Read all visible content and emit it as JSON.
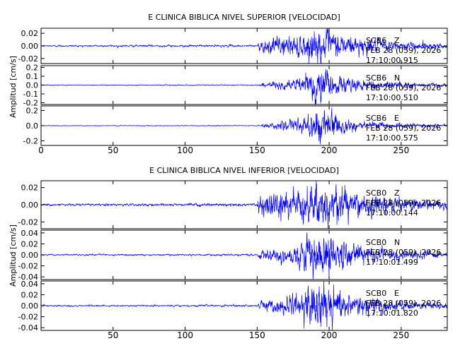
{
  "colors": {
    "trace": "#0000ee",
    "axes": "#000000",
    "background": "#ffffff"
  },
  "chart_data": [
    {
      "type": "line",
      "title": "E CLINICA BIBLICA NIVEL SUPERIOR [VELOCIDAD]",
      "ylabel": "Amplitud [cm/s]",
      "xlim": [
        0,
        282
      ],
      "x_ticks": [
        0,
        50,
        100,
        150,
        200,
        250
      ],
      "x_tick_labels": [
        "0",
        "50",
        "100",
        "150",
        "200",
        "250"
      ],
      "panels": [
        {
          "station": "SCB6",
          "component": "Z",
          "date": "FEB 28 (059), 2026",
          "time": "17:10:00.915",
          "ylim": [
            -0.028,
            0.028
          ],
          "y_ticks": [
            -0.02,
            0.0,
            0.02
          ],
          "y_tick_labels": [
            "-0.02",
            "0.00",
            "0.02"
          ],
          "envelope": [
            {
              "t": 0,
              "a": 0.0012
            },
            {
              "t": 150,
              "a": 0.0015
            },
            {
              "t": 152,
              "a": 0.008
            },
            {
              "t": 165,
              "a": 0.011
            },
            {
              "t": 182,
              "a": 0.016
            },
            {
              "t": 192,
              "a": 0.022
            },
            {
              "t": 200,
              "a": 0.019
            },
            {
              "t": 215,
              "a": 0.014
            },
            {
              "t": 240,
              "a": 0.007
            },
            {
              "t": 282,
              "a": 0.0035
            }
          ]
        },
        {
          "station": "SCB6",
          "component": "N",
          "date": "FEB 28 (059), 2026",
          "time": "17:10:00.510",
          "ylim": [
            -0.22,
            0.22
          ],
          "y_ticks": [
            -0.2,
            -0.1,
            0.0,
            0.1,
            0.2
          ],
          "y_tick_labels": [
            "-0.2",
            "-0.1",
            "0.0",
            "0.1",
            "0.2"
          ],
          "envelope": [
            {
              "t": 0,
              "a": 0.004
            },
            {
              "t": 150,
              "a": 0.005
            },
            {
              "t": 155,
              "a": 0.02
            },
            {
              "t": 175,
              "a": 0.05
            },
            {
              "t": 185,
              "a": 0.11
            },
            {
              "t": 190,
              "a": 0.19
            },
            {
              "t": 196,
              "a": 0.16
            },
            {
              "t": 205,
              "a": 0.09
            },
            {
              "t": 225,
              "a": 0.045
            },
            {
              "t": 282,
              "a": 0.015
            }
          ]
        },
        {
          "station": "SCB6",
          "component": "E",
          "date": "FEB 28 (059), 2026",
          "time": "17:10:00.575",
          "ylim": [
            -0.26,
            0.26
          ],
          "y_ticks": [
            -0.2,
            0.0,
            0.2
          ],
          "y_tick_labels": [
            "-0.2",
            "0.0",
            "0.2"
          ],
          "envelope": [
            {
              "t": 0,
              "a": 0.004
            },
            {
              "t": 150,
              "a": 0.005
            },
            {
              "t": 155,
              "a": 0.02
            },
            {
              "t": 175,
              "a": 0.06
            },
            {
              "t": 185,
              "a": 0.12
            },
            {
              "t": 192,
              "a": 0.22
            },
            {
              "t": 198,
              "a": 0.17
            },
            {
              "t": 210,
              "a": 0.08
            },
            {
              "t": 230,
              "a": 0.04
            },
            {
              "t": 282,
              "a": 0.012
            }
          ]
        }
      ]
    },
    {
      "type": "line",
      "title": "E CLINICA BIBLICA NIVEL INFERIOR [VELOCIDAD]",
      "ylabel": "Amplitud [cm/s]",
      "xlim": [
        0,
        282
      ],
      "x_ticks": [
        0,
        50,
        100,
        150,
        200,
        250
      ],
      "x_tick_labels": [
        "",
        "50",
        "100",
        "150",
        "200",
        "250"
      ],
      "panels": [
        {
          "station": "SCB0",
          "component": "Z",
          "date": "FEB 28 (059), 2026",
          "time": "17:10:00.144",
          "ylim": [
            -0.028,
            0.028
          ],
          "y_ticks": [
            -0.02,
            0.0,
            0.02
          ],
          "y_tick_labels": [
            "-0.02",
            "0.00",
            "0.02"
          ],
          "envelope": [
            {
              "t": 0,
              "a": 0.001
            },
            {
              "t": 150,
              "a": 0.0014
            },
            {
              "t": 152,
              "a": 0.01
            },
            {
              "t": 165,
              "a": 0.013
            },
            {
              "t": 182,
              "a": 0.017
            },
            {
              "t": 192,
              "a": 0.022
            },
            {
              "t": 200,
              "a": 0.02
            },
            {
              "t": 215,
              "a": 0.015
            },
            {
              "t": 240,
              "a": 0.007
            },
            {
              "t": 282,
              "a": 0.004
            }
          ]
        },
        {
          "station": "SCB0",
          "component": "N",
          "date": "FEB 28 (059), 2026",
          "time": "17:10:01.499",
          "ylim": [
            -0.045,
            0.045
          ],
          "y_ticks": [
            -0.04,
            -0.02,
            0.0,
            0.02,
            0.04
          ],
          "y_tick_labels": [
            "-0.04",
            "-0.02",
            "0.00",
            "0.02",
            "0.04"
          ],
          "envelope": [
            {
              "t": 0,
              "a": 0.0012
            },
            {
              "t": 150,
              "a": 0.0015
            },
            {
              "t": 152,
              "a": 0.006
            },
            {
              "t": 170,
              "a": 0.012
            },
            {
              "t": 185,
              "a": 0.025
            },
            {
              "t": 193,
              "a": 0.036
            },
            {
              "t": 200,
              "a": 0.03
            },
            {
              "t": 215,
              "a": 0.018
            },
            {
              "t": 240,
              "a": 0.009
            },
            {
              "t": 282,
              "a": 0.004
            }
          ]
        },
        {
          "station": "SCB0",
          "component": "E",
          "date": "FEB 28 (059), 2026",
          "time": "17:10:01.820",
          "ylim": [
            -0.045,
            0.045
          ],
          "y_ticks": [
            -0.04,
            -0.02,
            0.0,
            0.02,
            0.04
          ],
          "y_tick_labels": [
            "-0.04",
            "-0.02",
            "0.00",
            "0.02",
            "0.04"
          ],
          "envelope": [
            {
              "t": 0,
              "a": 0.0012
            },
            {
              "t": 150,
              "a": 0.0015
            },
            {
              "t": 152,
              "a": 0.006
            },
            {
              "t": 170,
              "a": 0.014
            },
            {
              "t": 185,
              "a": 0.028
            },
            {
              "t": 193,
              "a": 0.04
            },
            {
              "t": 200,
              "a": 0.032
            },
            {
              "t": 215,
              "a": 0.018
            },
            {
              "t": 240,
              "a": 0.009
            },
            {
              "t": 282,
              "a": 0.004
            }
          ]
        }
      ]
    }
  ]
}
